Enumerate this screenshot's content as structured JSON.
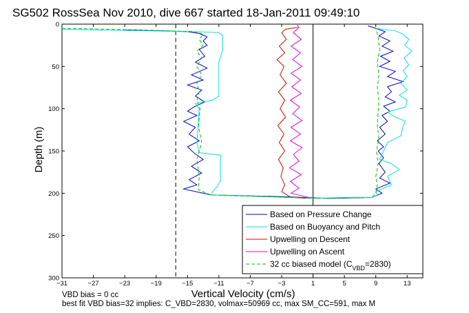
{
  "chart_data": {
    "type": "line",
    "title": "SG502 RossSea Nov 2010, dive 667 started 18-Jan-2011 09:49:10",
    "xlabel": "Vertical Velocity (cm/s)",
    "ylabel": "Depth (m)",
    "xlim": [
      -31,
      15
    ],
    "ylim": [
      0,
      300
    ],
    "y_reversed": true,
    "x_ticks": [
      -31,
      -27,
      -23,
      -19,
      -15,
      -11,
      -7,
      -3,
      1,
      5,
      9,
      13
    ],
    "y_ticks": [
      0,
      50,
      100,
      150,
      200,
      250,
      300
    ],
    "grid": false,
    "legend_position": "bottom-right",
    "reference_lines": [
      {
        "x": 1,
        "style": "solid",
        "color": "#000000"
      },
      {
        "x": -16.5,
        "style": "dashed",
        "color": "#000000"
      }
    ],
    "series": [
      {
        "name": "Based on Pressure Change",
        "color": "#0000c8",
        "style": "solid",
        "points": [
          [
            -23,
            7
          ],
          [
            -18,
            8
          ],
          [
            -15,
            9
          ],
          [
            -13.5,
            11
          ],
          [
            -12.5,
            15
          ],
          [
            -13,
            20
          ],
          [
            -12.5,
            25
          ],
          [
            -13.5,
            30
          ],
          [
            -12.8,
            38
          ],
          [
            -14,
            45
          ],
          [
            -12.5,
            52
          ],
          [
            -14.5,
            60
          ],
          [
            -13,
            66
          ],
          [
            -15,
            72
          ],
          [
            -13.2,
            78
          ],
          [
            -14,
            85
          ],
          [
            -12.8,
            92
          ],
          [
            -14.2,
            98
          ],
          [
            -15,
            103
          ],
          [
            -13.8,
            108
          ],
          [
            -15.5,
            115
          ],
          [
            -14,
            122
          ],
          [
            -14.8,
            130
          ],
          [
            -13.5,
            138
          ],
          [
            -15,
            145
          ],
          [
            -14.2,
            152
          ],
          [
            -13,
            160
          ],
          [
            -14.5,
            168
          ],
          [
            -13.2,
            176
          ],
          [
            -14.8,
            184
          ],
          [
            -13.8,
            190
          ],
          [
            -15.5,
            195
          ],
          [
            -13,
            200
          ],
          [
            -12,
            202
          ],
          [
            -3,
            204
          ],
          [
            3,
            206
          ],
          [
            8.5,
            205
          ],
          [
            9.8,
            200
          ],
          [
            9,
            195
          ],
          [
            10.8,
            188
          ],
          [
            9.5,
            182
          ],
          [
            10.2,
            175
          ],
          [
            9.4,
            165
          ],
          [
            10,
            158
          ],
          [
            9.3,
            150
          ],
          [
            10,
            145
          ],
          [
            9.2,
            138
          ],
          [
            10.2,
            130
          ],
          [
            9.5,
            122
          ],
          [
            10.5,
            115
          ],
          [
            9.8,
            108
          ],
          [
            10.8,
            103
          ],
          [
            10,
            97
          ],
          [
            11.5,
            92
          ],
          [
            10.2,
            86
          ],
          [
            11,
            80
          ],
          [
            10.5,
            74
          ],
          [
            12.5,
            68
          ],
          [
            10.5,
            62
          ],
          [
            11.5,
            56
          ],
          [
            9.5,
            50
          ],
          [
            10.8,
            44
          ],
          [
            9.6,
            38
          ],
          [
            11.2,
            32
          ],
          [
            9.8,
            26
          ],
          [
            10.8,
            20
          ],
          [
            9.4,
            14
          ],
          [
            10.2,
            9
          ],
          [
            9,
            5
          ],
          [
            8,
            2
          ]
        ]
      },
      {
        "name": "Based on Buoyancy and Pitch",
        "color": "#00e0e0",
        "style": "solid",
        "points": [
          [
            -31,
            6
          ],
          [
            -26,
            7
          ],
          [
            -20,
            8
          ],
          [
            -14,
            9
          ],
          [
            -11,
            10
          ],
          [
            -10.5,
            14
          ],
          [
            -10.5,
            30
          ],
          [
            -11,
            45
          ],
          [
            -11,
            85
          ],
          [
            -11.8,
            90
          ],
          [
            -14,
            94
          ],
          [
            -13.5,
            100
          ],
          [
            -13.8,
            140
          ],
          [
            -13.5,
            152
          ],
          [
            -10.8,
            155
          ],
          [
            -10.8,
            185
          ],
          [
            -11.2,
            192
          ],
          [
            -11.8,
            198
          ],
          [
            -12,
            202
          ],
          [
            -5,
            204
          ],
          [
            1,
            206
          ],
          [
            5,
            205
          ],
          [
            8.5,
            205
          ],
          [
            9.2,
            202
          ],
          [
            9,
            198
          ],
          [
            11,
            190
          ],
          [
            10.5,
            180
          ],
          [
            12,
            172
          ],
          [
            11,
            165
          ],
          [
            9.5,
            160
          ],
          [
            10,
            150
          ],
          [
            10.5,
            140
          ],
          [
            12.2,
            132
          ],
          [
            12.5,
            120
          ],
          [
            12.8,
            115
          ],
          [
            11.5,
            110
          ],
          [
            10.5,
            104
          ],
          [
            12.8,
            98
          ],
          [
            13,
            90
          ],
          [
            12,
            84
          ],
          [
            13,
            78
          ],
          [
            12.2,
            70
          ],
          [
            13,
            62
          ],
          [
            12.5,
            55
          ],
          [
            13.2,
            48
          ],
          [
            12.6,
            40
          ],
          [
            13.6,
            32
          ],
          [
            12.7,
            25
          ],
          [
            13.2,
            18
          ],
          [
            12.5,
            12
          ],
          [
            11.5,
            8
          ],
          [
            9,
            5
          ]
        ]
      },
      {
        "name": "Upwelling on Descent",
        "color": "#e00000",
        "style": "solid",
        "points": [
          [
            -1,
            4
          ],
          [
            -2.5,
            6
          ],
          [
            -3,
            10
          ],
          [
            -2.4,
            18
          ],
          [
            -3.3,
            26
          ],
          [
            -2.6,
            34
          ],
          [
            -3.6,
            42
          ],
          [
            -2.7,
            50
          ],
          [
            -3.2,
            60
          ],
          [
            -2.4,
            70
          ],
          [
            -3.4,
            80
          ],
          [
            -2.6,
            90
          ],
          [
            -3.2,
            100
          ],
          [
            -2.5,
            110
          ],
          [
            -3.5,
            120
          ],
          [
            -2.7,
            130
          ],
          [
            -3.3,
            140
          ],
          [
            -2.6,
            150
          ],
          [
            -3.4,
            160
          ],
          [
            -2.8,
            170
          ],
          [
            -3.1,
            180
          ],
          [
            -2.6,
            190
          ],
          [
            -3,
            198
          ],
          [
            -2,
            204
          ],
          [
            0,
            206
          ]
        ]
      },
      {
        "name": "Upwelling on Ascent",
        "color": "#e000e0",
        "style": "solid",
        "points": [
          [
            0.5,
            205
          ],
          [
            -1.8,
            200
          ],
          [
            -0.8,
            194
          ],
          [
            -1.9,
            186
          ],
          [
            -0.5,
            178
          ],
          [
            -2,
            170
          ],
          [
            -0.8,
            162
          ],
          [
            -1.5,
            154
          ],
          [
            -0.4,
            146
          ],
          [
            -1.9,
            138
          ],
          [
            -0.6,
            130
          ],
          [
            -1.8,
            122
          ],
          [
            -0.4,
            114
          ],
          [
            -1.6,
            106
          ],
          [
            -0.7,
            98
          ],
          [
            -1.9,
            90
          ],
          [
            -0.5,
            82
          ],
          [
            -1.7,
            74
          ],
          [
            -0.6,
            66
          ],
          [
            -1.8,
            58
          ],
          [
            -0.4,
            50
          ],
          [
            -1.6,
            42
          ],
          [
            -0.6,
            34
          ],
          [
            -1.8,
            26
          ],
          [
            -0.5,
            18
          ],
          [
            -1.5,
            10
          ],
          [
            -0.8,
            4
          ],
          [
            -1,
            1
          ]
        ]
      },
      {
        "name": "32 cc biased model (C",
        "name_sub": "VBD",
        "name_suffix": "=2830)",
        "color": "#00c000",
        "style": "dashed",
        "points": [
          [
            -31,
            5
          ],
          [
            -20,
            7
          ],
          [
            -14,
            9
          ],
          [
            -13,
            12
          ],
          [
            -13.5,
            18
          ],
          [
            -13,
            25
          ],
          [
            -13.8,
            32
          ],
          [
            -13.2,
            40
          ],
          [
            -13.8,
            50
          ],
          [
            -13.2,
            60
          ],
          [
            -13.8,
            70
          ],
          [
            -13.5,
            80
          ],
          [
            -13.8,
            90
          ],
          [
            -13.4,
            100
          ],
          [
            -13.6,
            120
          ],
          [
            -13.2,
            140
          ],
          [
            -13.8,
            160
          ],
          [
            -13.5,
            180
          ],
          [
            -13.6,
            196
          ],
          [
            -12,
            202
          ],
          [
            -5,
            204
          ],
          [
            2,
            206
          ],
          [
            8.5,
            205
          ],
          [
            9,
            200
          ],
          [
            9.2,
            190
          ],
          [
            9,
            180
          ],
          [
            9.3,
            165
          ],
          [
            9.1,
            150
          ],
          [
            9.4,
            135
          ],
          [
            9.2,
            120
          ],
          [
            9.3,
            105
          ],
          [
            9.4,
            90
          ],
          [
            9.2,
            75
          ],
          [
            9.4,
            60
          ],
          [
            9.2,
            45
          ],
          [
            9.5,
            30
          ],
          [
            9.3,
            15
          ],
          [
            9,
            5
          ]
        ]
      }
    ]
  },
  "footer": {
    "line1": "VBD bias = 0 cc",
    "line2": "best fit VBD bias=32 implies: C_VBD=2830, volmax=50969 cc, max SM_CC=591, max M"
  }
}
